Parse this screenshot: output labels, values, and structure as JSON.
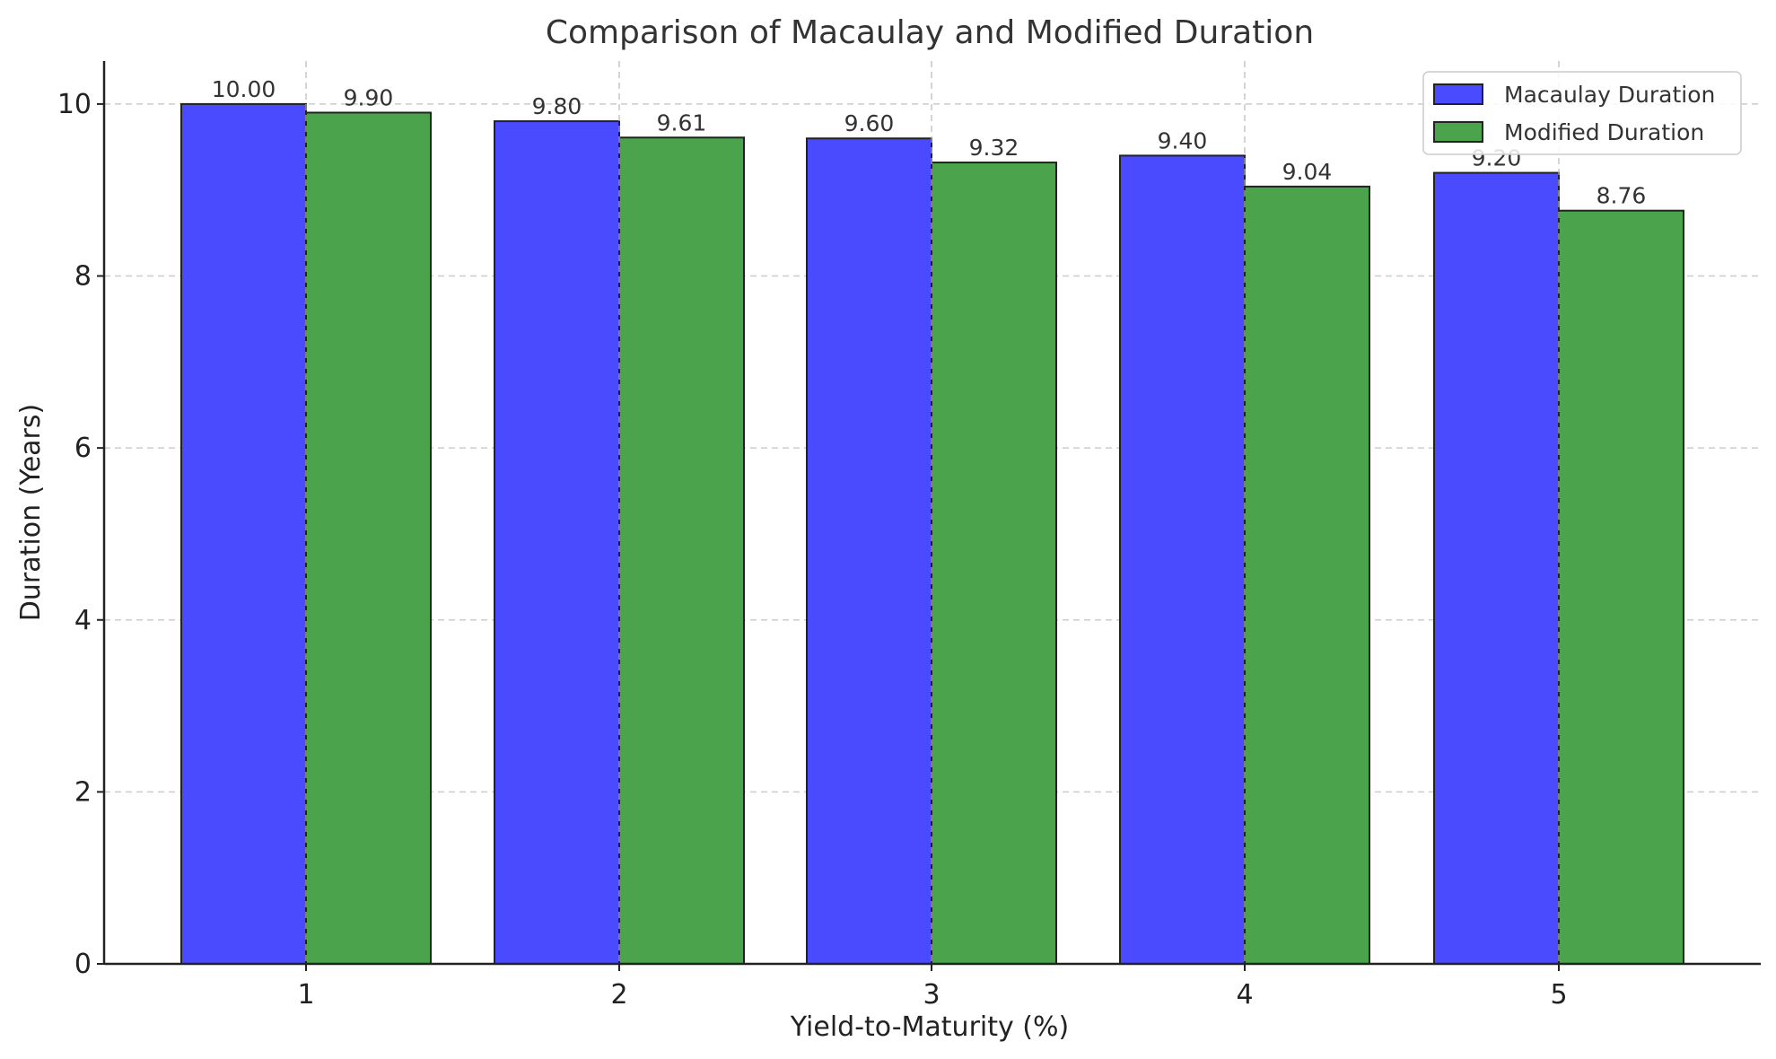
{
  "chart_data": {
    "type": "bar",
    "title": "Comparison of Macaulay and Modified Duration",
    "xlabel": "Yield-to-Maturity (%)",
    "ylabel": "Duration (Years)",
    "categories": [
      "1",
      "2",
      "3",
      "4",
      "5"
    ],
    "series": [
      {
        "name": "Macaulay Duration",
        "color": "#4a4aff",
        "values": [
          10.0,
          9.8,
          9.6,
          9.4,
          9.2
        ],
        "labels": [
          "10.00",
          "9.80",
          "9.60",
          "9.40",
          "9.20"
        ]
      },
      {
        "name": "Modified Duration",
        "color": "#4ba44b",
        "values": [
          9.9,
          9.61,
          9.32,
          9.04,
          8.76
        ],
        "labels": [
          "9.90",
          "9.61",
          "9.32",
          "9.04",
          "8.76"
        ]
      }
    ],
    "ylim": [
      0,
      10.5
    ],
    "yticks": [
      0,
      2,
      4,
      6,
      8,
      10
    ],
    "ytick_labels": [
      "0",
      "2",
      "4",
      "6",
      "8",
      "10"
    ],
    "grid": true,
    "legend_position": "top-right"
  }
}
